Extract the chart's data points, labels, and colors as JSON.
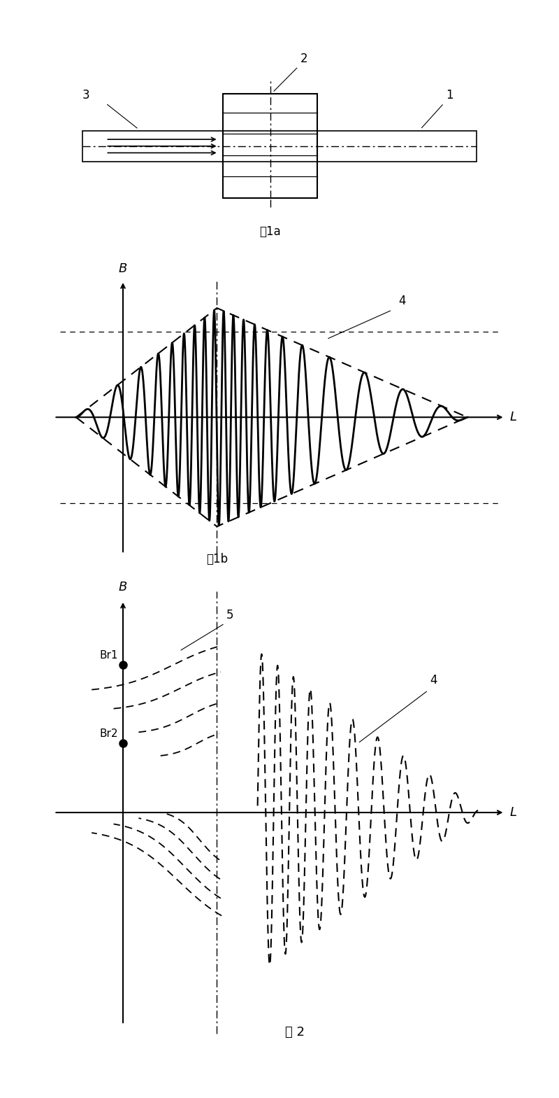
{
  "bg_color": "#ffffff",
  "fig_width": 8.0,
  "fig_height": 15.69,
  "fig1a_caption": "图1a",
  "fig1b_caption": "图1b",
  "fig2_caption": "图 2",
  "label_1": "1",
  "label_2": "2",
  "label_3": "3",
  "label_4": "4",
  "label_5": "5",
  "label_Br1": "Br1",
  "label_Br2": "Br2",
  "label_B": "B",
  "label_L": "L"
}
